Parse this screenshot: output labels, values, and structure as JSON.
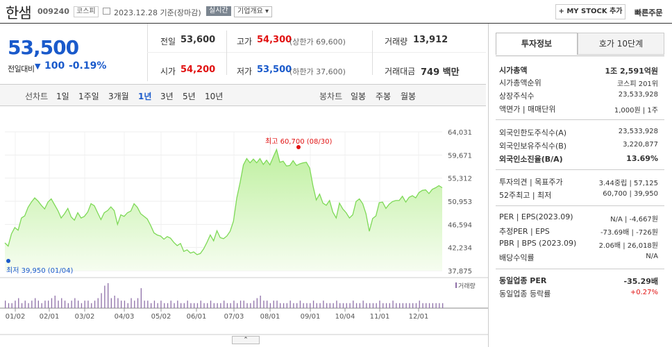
{
  "header": {
    "name": "한샘",
    "code": "009240",
    "market": "코스피",
    "date": "2023.12.28 기준(장마감)",
    "realtime": "실시간",
    "company_info": "기업개요",
    "mystock": "+ MY STOCK 추가",
    "quick_order": "빠른주문"
  },
  "price": {
    "current": "53,500",
    "vs_label": "전일대비",
    "change": "100",
    "change_pct": "-0.19%"
  },
  "quote": {
    "prev_label": "전일",
    "prev": "53,600",
    "high_label": "고가",
    "high": "54,300",
    "upper_limit": "(상한가 69,600)",
    "volume_label": "거래량",
    "volume": "13,912",
    "open_label": "시가",
    "open": "54,200",
    "low_label": "저가",
    "low": "53,500",
    "lower_limit": "(하한가 37,600)",
    "amount_label": "거래대금",
    "amount": "749 백만"
  },
  "tabs": {
    "line_label": "선차트",
    "periods": [
      "1일",
      "1주일",
      "3개월",
      "1년",
      "3년",
      "5년",
      "10년"
    ],
    "active": "1년",
    "candle_label": "봉차트",
    "candles": [
      "일봉",
      "주봉",
      "월봉"
    ]
  },
  "chart_data": {
    "type": "area",
    "y_ticks": [
      "64,031",
      "59,671",
      "55,312",
      "50,953",
      "46,594",
      "42,234",
      "37,875"
    ],
    "ylim": [
      37875,
      64031
    ],
    "x_ticks": [
      "01/02",
      "02/01",
      "03/02",
      "04/03",
      "05/02",
      "06/01",
      "07/03",
      "08/01",
      "09/01",
      "10/04",
      "11/01",
      "12/01"
    ],
    "max_annotation": "최고 60,700 (08/30)",
    "min_annotation": "최저 39,950 (01/04)",
    "volume_legend": "거래량",
    "color": "#7ed957",
    "series": [
      {
        "values": [
          43100,
          42500,
          44800,
          46000,
          45500,
          47800,
          48200,
          49800,
          50800,
          51600,
          51000,
          50200,
          49500,
          50800,
          51400,
          50300,
          49200,
          47800,
          48600,
          49600,
          48000,
          47400,
          48800,
          47800,
          48100,
          48900,
          50500,
          50100,
          48800,
          47500,
          48800,
          49200,
          49900,
          49200,
          46600,
          48400,
          48100,
          48800,
          49100,
          50500,
          49800,
          48600,
          48100,
          47600,
          46400,
          45000,
          44600,
          44400,
          43800,
          44300,
          44000,
          43200,
          42600,
          43000,
          41500,
          41800,
          41200,
          41400,
          40900,
          41100,
          42000,
          43200,
          44600,
          43500,
          45400,
          44100,
          43900,
          44400,
          45300,
          47200,
          51600,
          54500,
          57800,
          59000,
          58200,
          58900,
          58200,
          59000,
          57900,
          58700,
          57800,
          59300,
          60700,
          58300,
          58500,
          57600,
          57700,
          58600,
          57700,
          58000,
          58200,
          58300,
          57200,
          53800,
          51200,
          52300,
          50600,
          50200,
          51100,
          48900,
          47800,
          50600,
          49500,
          48800,
          47800,
          48400,
          50900,
          51400,
          50500,
          48600,
          45300,
          47700,
          48200,
          50700,
          50800,
          49600,
          50400,
          50900,
          51100,
          51100,
          51900,
          50800,
          51700,
          52000,
          51600,
          52600,
          53000,
          53100,
          52400,
          53200,
          53500,
          53900,
          53500
        ]
      }
    ],
    "volume_values": [
      3,
      2,
      2,
      3,
      4,
      2,
      3,
      2,
      3,
      4,
      3,
      2,
      3,
      3,
      4,
      5,
      3,
      4,
      3,
      2,
      3,
      4,
      3,
      2,
      3,
      3,
      2,
      3,
      4,
      6,
      9,
      10,
      4,
      5,
      4,
      3,
      3,
      2,
      4,
      3,
      4,
      8,
      3,
      3,
      2,
      3,
      2,
      3,
      2,
      2,
      3,
      2,
      3,
      2,
      2,
      3,
      2,
      2,
      2,
      3,
      2,
      2,
      3,
      2,
      2,
      2,
      3,
      2,
      2,
      3,
      2,
      3,
      3,
      2,
      2,
      3,
      4,
      5,
      3,
      3,
      2,
      3,
      3,
      2,
      2,
      2,
      3,
      2,
      2,
      3,
      2,
      2,
      2,
      3,
      2,
      2,
      3,
      2,
      2,
      2,
      3,
      2,
      2,
      2,
      2,
      3,
      2,
      2,
      3,
      2,
      2,
      2,
      2,
      3,
      2,
      2,
      2,
      3,
      2,
      2,
      2,
      2,
      2,
      2,
      2,
      3,
      2,
      2,
      2,
      2,
      2,
      2,
      2
    ]
  },
  "invest": {
    "tab1": "투자정보",
    "tab2": "호가 10단계",
    "rows": [
      {
        "l": "시가총액",
        "v": "1조 2,591억원",
        "bold": true
      },
      {
        "l": "시가총액순위",
        "v": "코스피 201위"
      },
      {
        "l": "상장주식수",
        "v": "23,533,928"
      },
      {
        "l": "액면가 | 매매단위",
        "v": "1,000원 | 1주"
      },
      {
        "l": "외국인한도주식수(A)",
        "v": "23,533,928"
      },
      {
        "l": "외국인보유주식수(B)",
        "v": "3,220,877"
      },
      {
        "l": "외국인소진율(B/A)",
        "v": "13.69%",
        "bold": true
      },
      {
        "l": "투자의견 | 목표주가",
        "v": "3.44중립 | 57,125"
      },
      {
        "l": "52주최고 | 최저",
        "v": "60,700 | 39,950"
      },
      {
        "l": "PER | EPS(2023.09)",
        "v": "N/A | -4,667원"
      },
      {
        "l": "추정PER | EPS",
        "v": "-73.69배 | -726원"
      },
      {
        "l": "PBR | BPS (2023.09)",
        "v": "2.06배 | 26,018원"
      },
      {
        "l": "배당수익률",
        "v": "N/A"
      },
      {
        "l": "동일업종 PER",
        "v": "-35.29배",
        "bold": true
      },
      {
        "l": "동일업종 등락률",
        "v": "+0.27%"
      }
    ]
  }
}
